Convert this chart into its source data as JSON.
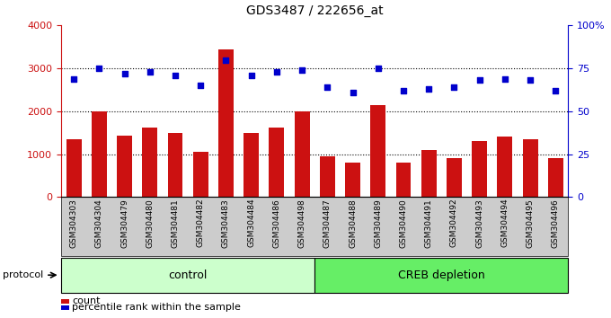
{
  "title": "GDS3487 / 222656_at",
  "samples": [
    "GSM304303",
    "GSM304304",
    "GSM304479",
    "GSM304480",
    "GSM304481",
    "GSM304482",
    "GSM304483",
    "GSM304484",
    "GSM304486",
    "GSM304498",
    "GSM304487",
    "GSM304488",
    "GSM304489",
    "GSM304490",
    "GSM304491",
    "GSM304492",
    "GSM304493",
    "GSM304494",
    "GSM304495",
    "GSM304496"
  ],
  "counts": [
    1350,
    2000,
    1430,
    1620,
    1490,
    1050,
    3440,
    1490,
    1620,
    2000,
    950,
    800,
    2150,
    800,
    1100,
    900,
    1300,
    1420,
    1350,
    900
  ],
  "percentile_ranks": [
    69,
    75,
    72,
    73,
    71,
    65,
    80,
    71,
    73,
    74,
    64,
    61,
    75,
    62,
    63,
    64,
    68,
    69,
    68,
    62
  ],
  "control_count": 10,
  "creb_count": 10,
  "bar_color": "#cc1111",
  "dot_color": "#0000cc",
  "control_color": "#ccffcc",
  "creb_color": "#66ee66",
  "ylim_left": [
    0,
    4000
  ],
  "ylim_right": [
    0,
    100
  ],
  "yticks_left": [
    0,
    1000,
    2000,
    3000,
    4000
  ],
  "ytick_labels_left": [
    "0",
    "1000",
    "2000",
    "3000",
    "4000"
  ],
  "yticks_right": [
    0,
    25,
    50,
    75,
    100
  ],
  "ytick_labels_right": [
    "0",
    "25",
    "50",
    "75",
    "100%"
  ],
  "legend_count_label": "count",
  "legend_pct_label": "percentile rank within the sample",
  "protocol_label": "protocol",
  "control_label": "control",
  "creb_label": "CREB depletion",
  "xlabel_bg_color": "#cccccc"
}
